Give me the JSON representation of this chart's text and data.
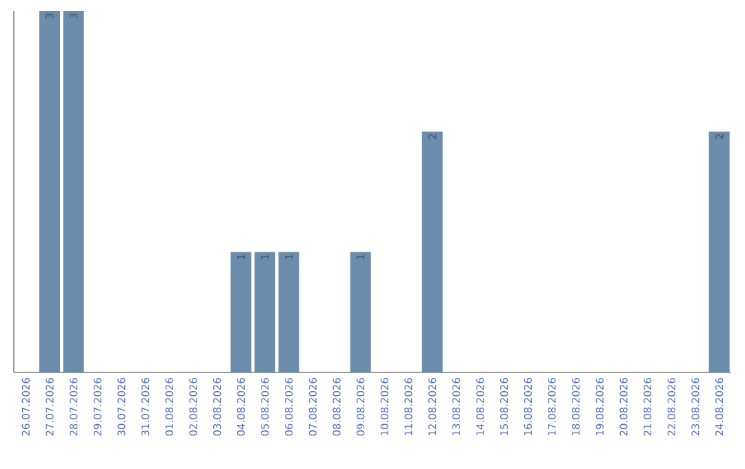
{
  "chart_data": {
    "type": "bar",
    "color": "#6c8cab",
    "categories": [
      "26.07.2026",
      "27.07.2026",
      "28.07.2026",
      "29.07.2026",
      "30.07.2026",
      "31.07.2026",
      "01.08.2026",
      "02.08.2026",
      "03.08.2026",
      "04.08.2026",
      "05.08.2026",
      "06.08.2026",
      "07.08.2026",
      "08.08.2026",
      "09.08.2026",
      "10.08.2026",
      "11.08.2026",
      "12.08.2026",
      "13.08.2026",
      "14.08.2026",
      "15.08.2026",
      "16.08.2026",
      "17.08.2026",
      "18.08.2026",
      "19.08.2026",
      "20.08.2026",
      "21.08.2026",
      "22.08.2026",
      "23.08.2026",
      "24.08.2026"
    ],
    "values": [
      0,
      3,
      3,
      0,
      0,
      0,
      0,
      0,
      0,
      1,
      1,
      1,
      0,
      0,
      1,
      0,
      0,
      2,
      0,
      0,
      0,
      0,
      0,
      0,
      0,
      0,
      0,
      0,
      0,
      2
    ],
    "value_labels": [
      null,
      "3",
      "3",
      null,
      null,
      null,
      null,
      null,
      null,
      "1",
      "1",
      "1",
      null,
      null,
      "1",
      null,
      null,
      "2",
      null,
      null,
      null,
      null,
      null,
      null,
      null,
      null,
      null,
      null,
      null,
      "2"
    ],
    "grid": false
  }
}
